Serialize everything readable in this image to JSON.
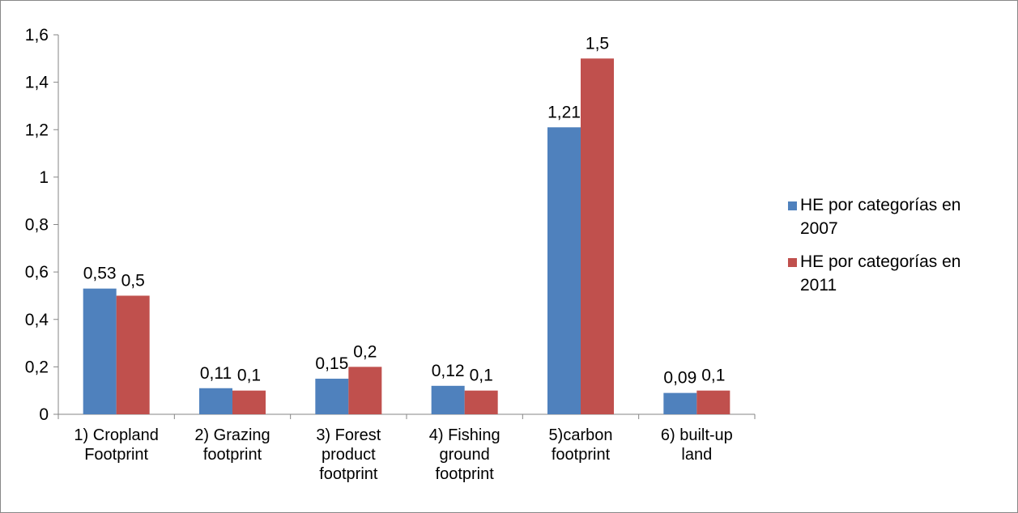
{
  "chart_data": {
    "type": "bar",
    "title": "",
    "xlabel": "",
    "ylabel": "",
    "ylim": [
      0,
      1.6
    ],
    "yticks": [
      "0",
      "0,2",
      "0,4",
      "0,6",
      "0,8",
      "1",
      "1,2",
      "1,4",
      "1,6"
    ],
    "grid": false,
    "legend_position": "right",
    "categories": [
      [
        "1) Cropland",
        "Footprint"
      ],
      [
        "2) Grazing",
        "footprint"
      ],
      [
        "3) Forest",
        "product",
        "footprint"
      ],
      [
        "4) Fishing",
        "ground",
        "footprint"
      ],
      [
        "5)carbon",
        "footprint"
      ],
      [
        "6) built-up",
        "land"
      ]
    ],
    "series": [
      {
        "name": [
          "HE por categorías en",
          "2007"
        ],
        "color": "#4F81BD",
        "values": [
          0.53,
          0.11,
          0.15,
          0.12,
          1.21,
          0.09
        ],
        "labels": [
          "0,53",
          "0,11",
          "0,15",
          "0,12",
          "1,21",
          "0,09"
        ]
      },
      {
        "name": [
          "HE por categorías en",
          "2011"
        ],
        "color": "#C0504D",
        "values": [
          0.5,
          0.1,
          0.2,
          0.1,
          1.5,
          0.1
        ],
        "labels": [
          "0,5",
          "0,1",
          "0,2",
          "0,1",
          "1,5",
          "0,1"
        ]
      }
    ]
  }
}
